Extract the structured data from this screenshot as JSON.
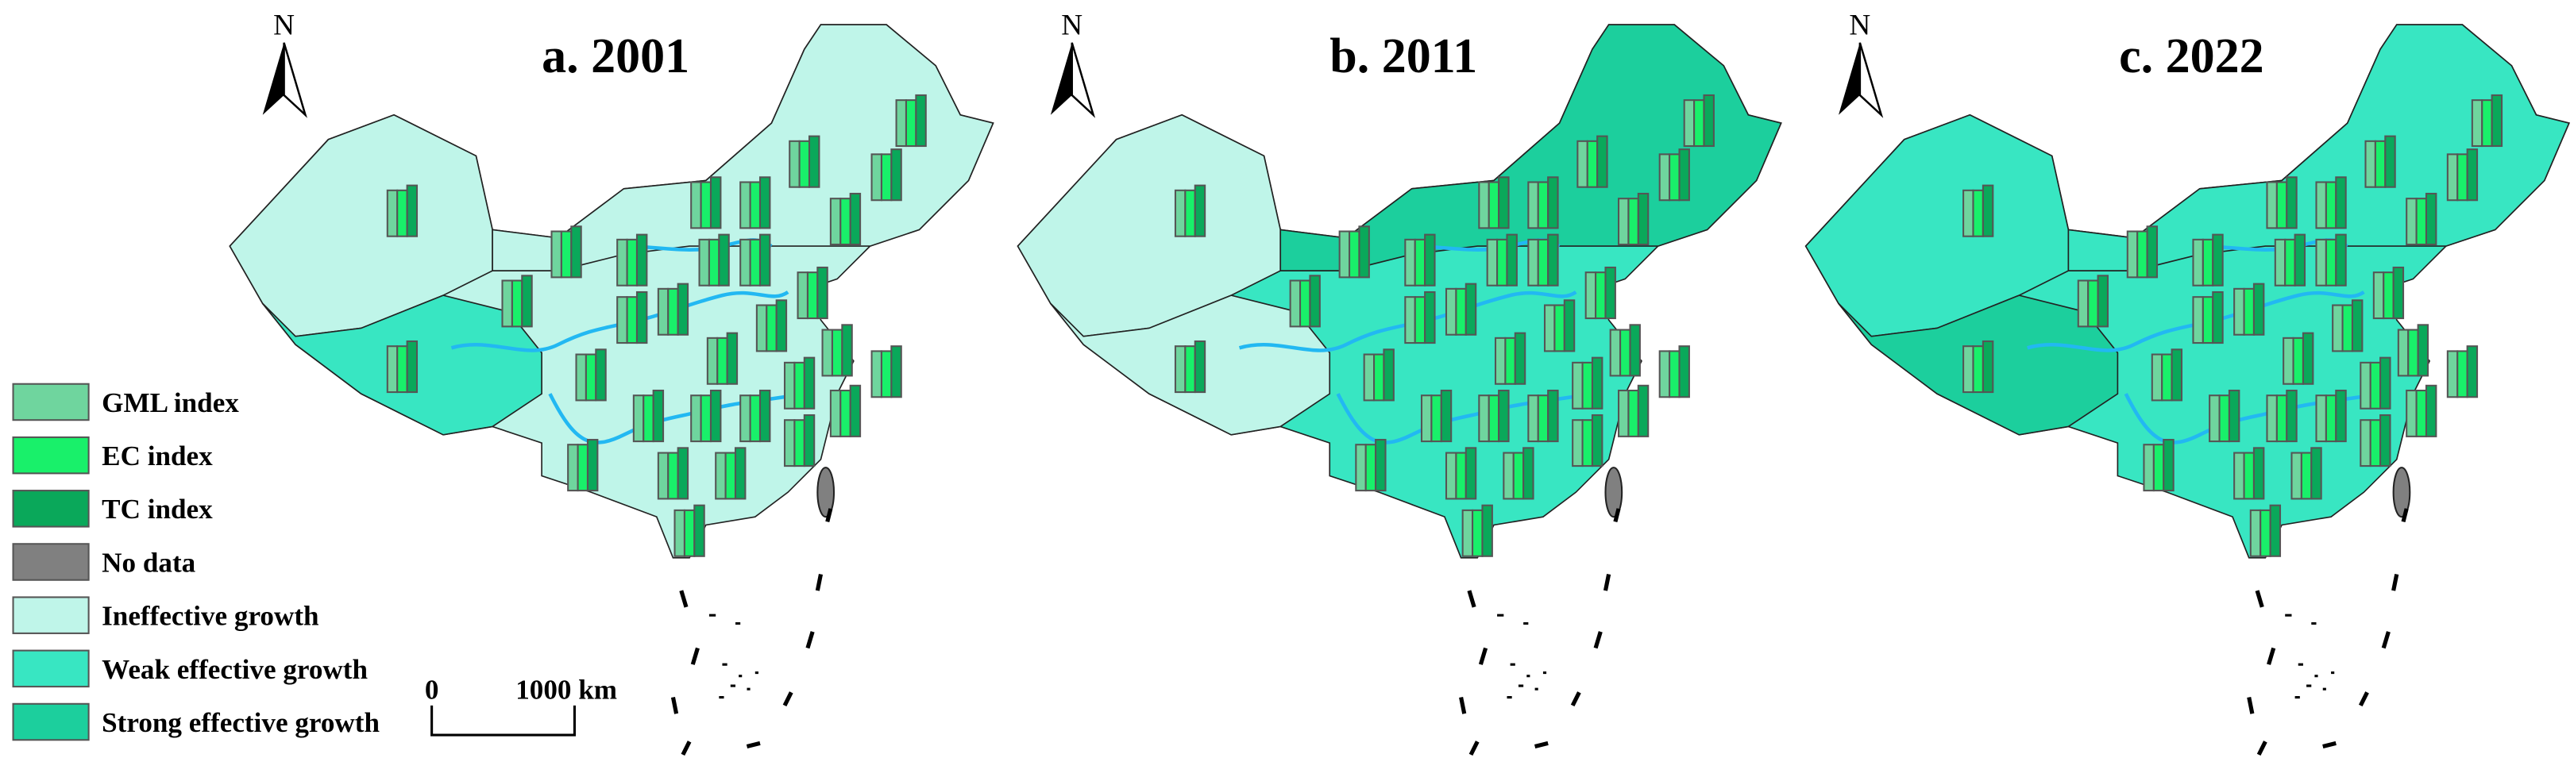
{
  "panels": [
    {
      "title": "a. 2001",
      "north": "N"
    },
    {
      "title": "b. 2011",
      "north": "N"
    },
    {
      "title": "c. 2022",
      "north": "N"
    }
  ],
  "legend": {
    "items": [
      "GML index",
      "EC index",
      "TC index",
      "No data",
      "Ineffective growth",
      "Weak effective growth",
      "Strong effective growth"
    ]
  },
  "scale_bar": {
    "start": "0",
    "end": "1000 km"
  }
}
